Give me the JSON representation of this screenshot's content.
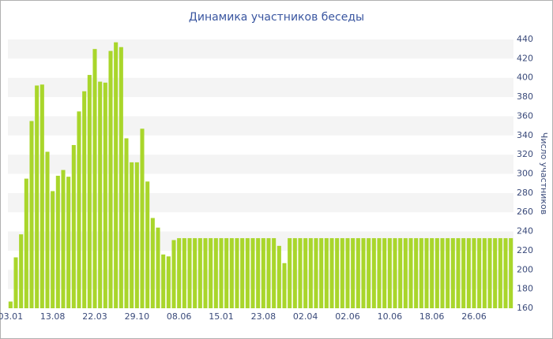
{
  "chart_data": {
    "type": "bar",
    "title": "Динамика участников беседы",
    "y_label": "Число участников",
    "categories": [
      "03.01",
      null,
      null,
      null,
      null,
      null,
      null,
      null,
      "13.08",
      null,
      null,
      null,
      null,
      null,
      null,
      null,
      "22.03",
      null,
      null,
      null,
      null,
      null,
      null,
      null,
      "29.10",
      null,
      null,
      null,
      null,
      null,
      null,
      null,
      "08.06",
      null,
      null,
      null,
      null,
      null,
      null,
      null,
      "15.01",
      null,
      null,
      null,
      null,
      null,
      null,
      null,
      "23.08",
      null,
      null,
      null,
      null,
      null,
      null,
      null,
      "02.04",
      null,
      null,
      null,
      null,
      null,
      null,
      null,
      "02.06",
      null,
      null,
      null,
      null,
      null,
      null,
      null,
      "10.06",
      null,
      null,
      null,
      null,
      null,
      null,
      null,
      "18.06",
      null,
      null,
      null,
      null,
      null,
      null,
      null,
      "26.06",
      null,
      null,
      null,
      null,
      null,
      null,
      null
    ],
    "values": [
      167,
      213,
      237,
      295,
      355,
      392,
      393,
      323,
      282,
      298,
      304,
      297,
      330,
      365,
      386,
      403,
      430,
      396,
      395,
      428,
      437,
      432,
      337,
      312,
      312,
      347,
      292,
      254,
      244,
      216,
      214,
      231,
      233,
      233,
      233,
      233,
      233,
      233,
      233,
      233,
      233,
      233,
      233,
      233,
      233,
      233,
      233,
      233,
      233,
      233,
      233,
      225,
      207,
      233,
      233,
      233,
      233,
      233,
      233,
      233,
      233,
      233,
      233,
      233,
      233,
      233,
      233,
      233,
      233,
      233,
      233,
      233,
      233,
      233,
      233,
      233,
      233,
      233,
      233,
      233,
      233,
      233,
      233,
      233,
      233,
      233,
      233,
      233,
      233,
      233,
      233,
      233,
      233,
      233,
      233,
      233
    ],
    "color": "#a9d62b",
    "ylim": [
      160,
      440
    ],
    "yticks": [
      160,
      180,
      200,
      220,
      240,
      260,
      280,
      300,
      320,
      340,
      360,
      380,
      400,
      420,
      440
    ],
    "y_axis_side": "right",
    "grid": true
  }
}
